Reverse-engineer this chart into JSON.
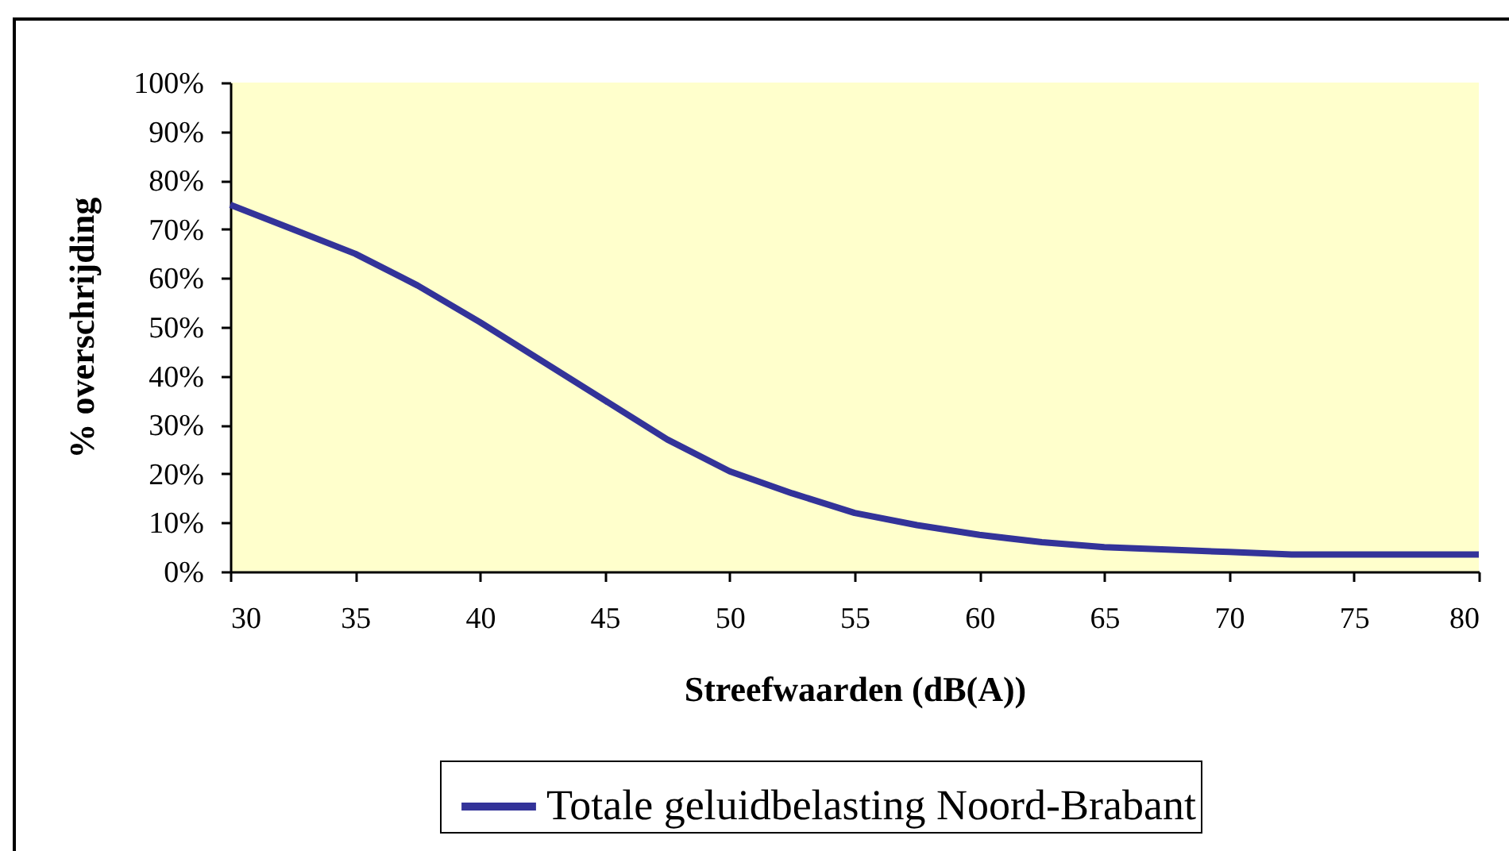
{
  "chart_data": {
    "type": "line",
    "xlabel": "Streefwaarden (dB(A))",
    "ylabel": "% overschrijding",
    "x": [
      30,
      32.5,
      35,
      37.5,
      40,
      42.5,
      45,
      47.5,
      50,
      52.5,
      55,
      57.5,
      60,
      62.5,
      65,
      67.5,
      70,
      72.5,
      75,
      77.5,
      80
    ],
    "series": [
      {
        "name": "Totale geluidbelasting Noord-Brabant",
        "color": "#333399",
        "values": [
          75,
          70,
          65,
          58.5,
          51,
          43,
          35,
          27,
          20.5,
          16,
          12,
          9.5,
          7.5,
          6,
          5,
          4.5,
          4,
          3.5,
          3.5,
          3.5,
          3.5
        ]
      }
    ],
    "xlim": [
      30,
      80
    ],
    "xticks": [
      30,
      35,
      40,
      45,
      50,
      55,
      60,
      65,
      70,
      75,
      80
    ],
    "ylim": [
      0,
      100
    ],
    "yticks": [
      {
        "value": 0,
        "label": "0%"
      },
      {
        "value": 10,
        "label": "10%"
      },
      {
        "value": 20,
        "label": "20%"
      },
      {
        "value": 30,
        "label": "30%"
      },
      {
        "value": 40,
        "label": "40%"
      },
      {
        "value": 50,
        "label": "50%"
      },
      {
        "value": 60,
        "label": "60%"
      },
      {
        "value": 70,
        "label": "70%"
      },
      {
        "value": 80,
        "label": "80%"
      },
      {
        "value": 90,
        "label": "90%"
      },
      {
        "value": 100,
        "label": "100%"
      }
    ],
    "grid": false,
    "legend": "bottom"
  }
}
